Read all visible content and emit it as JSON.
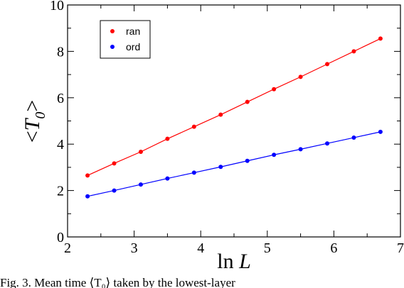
{
  "chart_data": {
    "type": "line",
    "title": "",
    "xlabel": "ln L",
    "ylabel": "<T0>",
    "xlim": [
      2,
      7
    ],
    "ylim": [
      0,
      10
    ],
    "xticks": [
      2,
      3,
      4,
      5,
      6,
      7
    ],
    "yticks": [
      0,
      2,
      4,
      6,
      8,
      10
    ],
    "xtick_labels": [
      "2",
      "3",
      "4",
      "5",
      "6",
      "7"
    ],
    "ytick_labels": [
      "0",
      "2",
      "4",
      "6",
      "8",
      "10"
    ],
    "grid": false,
    "legend_position": "top-left",
    "series": [
      {
        "name": "ran",
        "color": "#ff0000",
        "x": [
          2.3,
          2.7,
          3.1,
          3.5,
          3.9,
          4.3,
          4.7,
          5.1,
          5.5,
          5.9,
          6.3,
          6.7
        ],
        "y": [
          2.65,
          3.17,
          3.67,
          4.23,
          4.75,
          5.27,
          5.82,
          6.37,
          6.9,
          7.45,
          8.0,
          8.55
        ]
      },
      {
        "name": "ord",
        "color": "#0000ff",
        "x": [
          2.3,
          2.7,
          3.1,
          3.5,
          3.9,
          4.3,
          4.7,
          5.1,
          5.5,
          5.9,
          6.3,
          6.7
        ],
        "y": [
          1.75,
          2.0,
          2.26,
          2.52,
          2.77,
          3.02,
          3.28,
          3.54,
          3.78,
          4.03,
          4.28,
          4.53
        ]
      }
    ]
  },
  "caption": "Fig. 3. Mean time ⟨T₀⟩ taken by the lowest-layer"
}
